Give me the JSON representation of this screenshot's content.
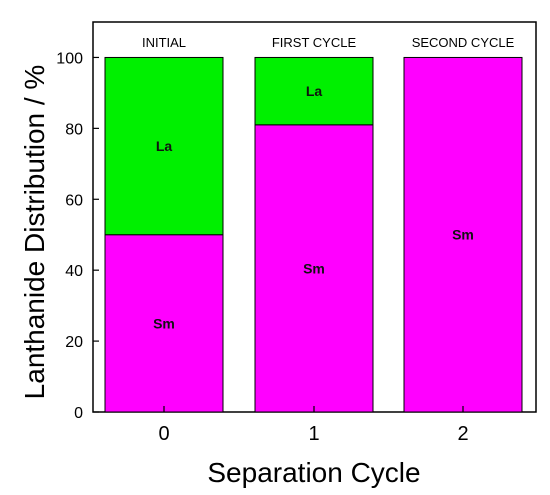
{
  "chart_data": {
    "type": "bar",
    "stacked": true,
    "categories": [
      "0",
      "1",
      "2"
    ],
    "column_headers": [
      "INITIAL",
      "FIRST CYCLE",
      "SECOND CYCLE"
    ],
    "series": [
      {
        "name": "Sm",
        "values": [
          50,
          81,
          100
        ],
        "color": "#ff00ff",
        "labels": [
          "Sm",
          "Sm",
          "Sm"
        ]
      },
      {
        "name": "La",
        "values": [
          50,
          19,
          0
        ],
        "color": "#00f000",
        "labels": [
          "La",
          "La",
          ""
        ]
      }
    ],
    "xlabel": "Separation Cycle",
    "ylabel": "Lanthanide Distribution / %",
    "ylim": [
      0,
      110
    ],
    "yticks": [
      "0",
      "20",
      "40",
      "60",
      "80",
      "100"
    ],
    "grid": false
  }
}
